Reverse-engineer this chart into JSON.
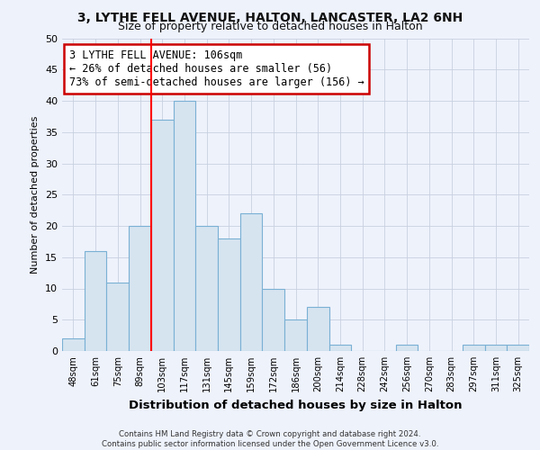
{
  "title1": "3, LYTHE FELL AVENUE, HALTON, LANCASTER, LA2 6NH",
  "title2": "Size of property relative to detached houses in Halton",
  "xlabel": "Distribution of detached houses by size in Halton",
  "ylabel": "Number of detached properties",
  "bar_labels": [
    "48sqm",
    "61sqm",
    "75sqm",
    "89sqm",
    "103sqm",
    "117sqm",
    "131sqm",
    "145sqm",
    "159sqm",
    "172sqm",
    "186sqm",
    "200sqm",
    "214sqm",
    "228sqm",
    "242sqm",
    "256sqm",
    "270sqm",
    "283sqm",
    "297sqm",
    "311sqm",
    "325sqm"
  ],
  "bar_values": [
    2,
    16,
    11,
    20,
    37,
    40,
    20,
    18,
    22,
    10,
    5,
    7,
    1,
    0,
    0,
    1,
    0,
    0,
    1,
    1,
    1
  ],
  "bar_color": "#d6e4f0",
  "bar_edge_color": "#7ab0d4",
  "red_line_x": 3.5,
  "annotation_text": "3 LYTHE FELL AVENUE: 106sqm\n← 26% of detached houses are smaller (56)\n73% of semi-detached houses are larger (156) →",
  "annotation_box_color": "#ffffff",
  "annotation_box_edgecolor": "#cc0000",
  "ylim": [
    0,
    50
  ],
  "yticks": [
    0,
    5,
    10,
    15,
    20,
    25,
    30,
    35,
    40,
    45,
    50
  ],
  "background_color": "#eef2fb",
  "grid_color": "#c8d0e0",
  "footer": "Contains HM Land Registry data © Crown copyright and database right 2024.\nContains public sector information licensed under the Open Government Licence v3.0.",
  "title1_fontsize": 10,
  "title2_fontsize": 9
}
